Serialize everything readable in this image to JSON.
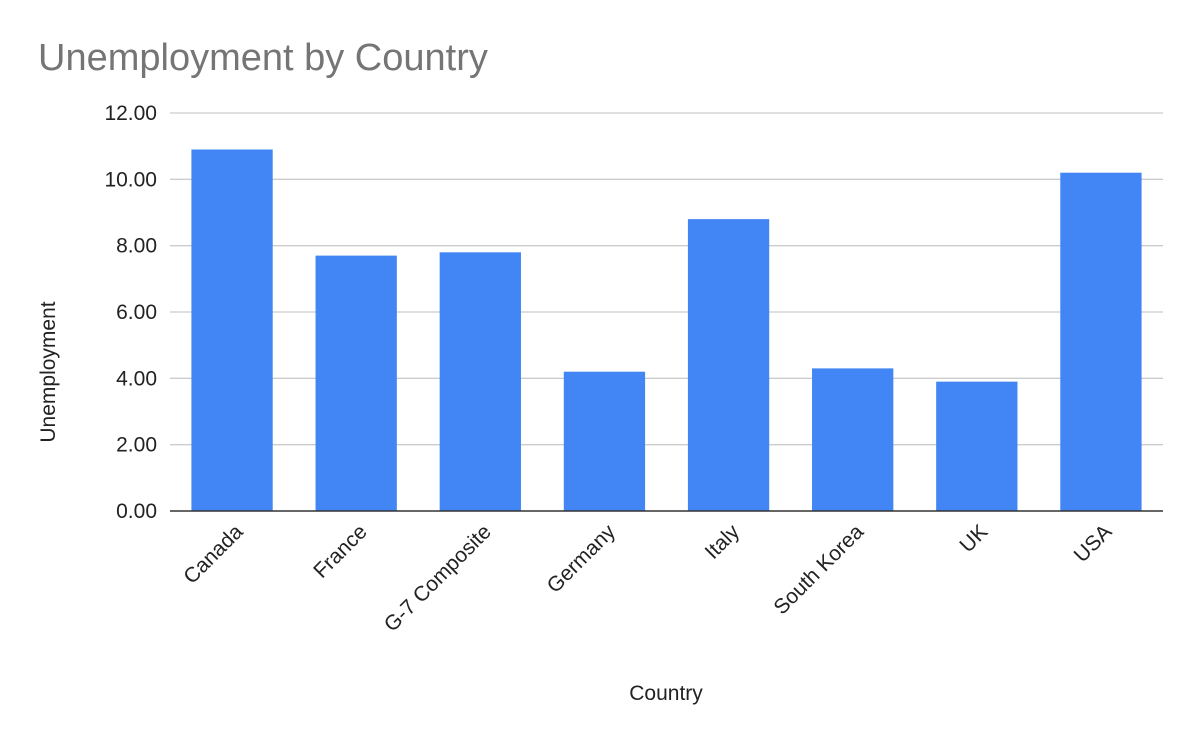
{
  "chart_data": {
    "type": "bar",
    "title": "Unemployment by Country",
    "xlabel": "Country",
    "ylabel": "Unemployment",
    "categories": [
      "Canada",
      "France",
      "G-7 Composite",
      "Germany",
      "Italy",
      "South Korea",
      "UK",
      "USA"
    ],
    "series": [
      {
        "values": [
          10.9,
          7.7,
          7.8,
          4.2,
          8.8,
          4.3,
          3.9,
          10.2
        ]
      }
    ],
    "ylim": [
      0,
      12
    ],
    "yticks": [
      "0.00",
      "2.00",
      "4.00",
      "6.00",
      "8.00",
      "10.00",
      "12.00"
    ],
    "grid": true,
    "legend": "none",
    "bar_color": "#4285f4",
    "x_tick_rotation": -45
  }
}
